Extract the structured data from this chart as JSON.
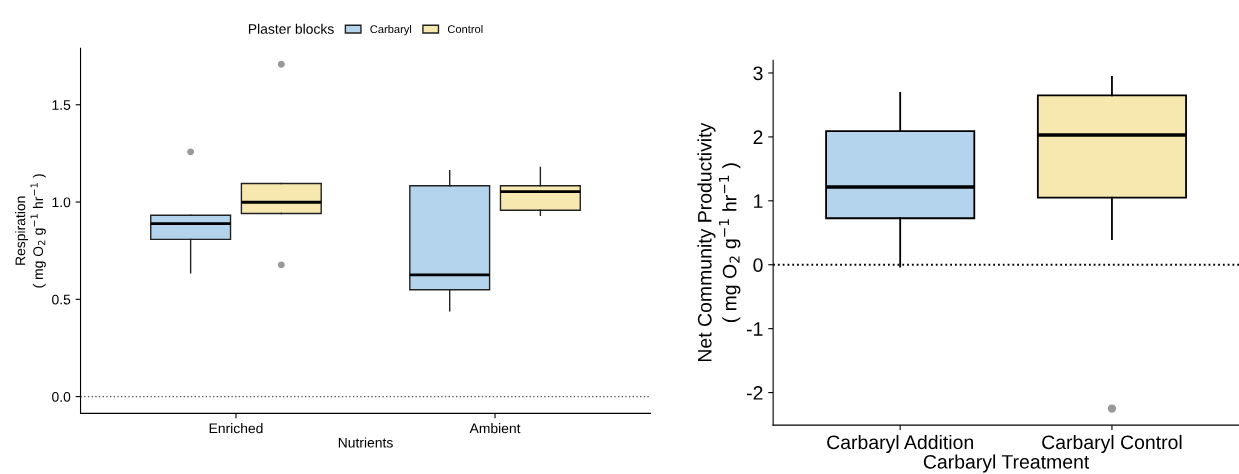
{
  "chart_data": [
    {
      "type": "box",
      "xlabel": "Nutrients",
      "ylabel": "Respiration\n( mg O$_{2}$ g$^{−1}$ hr$^{−1}$ )",
      "legend_title": "Plaster blocks",
      "legend": "top",
      "categories": [
        "Enriched",
        "Ambient"
      ],
      "ylim": [
        -0.086,
        1.79
      ],
      "yticks": [
        {
          "value": 0,
          "label": "0.0"
        },
        0.5,
        {
          "value": 1,
          "label": "1.0"
        },
        1.5
      ],
      "grid": false,
      "series": [
        {
          "name": "Carbaryl",
          "color": "#b3d4ec",
          "boxes": [
            {
              "low": 0.636,
              "q1": 0.808,
              "median": 0.889,
              "q3": 0.932,
              "high": 0.932,
              "outliers": [
                1.258
              ]
            },
            {
              "low": 0.441,
              "q1": 0.549,
              "median": 0.626,
              "q3": 1.084,
              "high": 1.161
            }
          ]
        },
        {
          "name": "Control",
          "color": "#f7e8b0",
          "boxes": [
            {
              "low": 0.941,
              "q1": 0.941,
              "median": 0.999,
              "q3": 1.095,
              "high": 1.095,
              "outliers": [
                1.708,
                0.677
              ]
            },
            {
              "low": 0.932,
              "q1": 0.958,
              "median": 1.054,
              "q3": 1.084,
              "high": 1.178
            }
          ]
        }
      ],
      "ref_lines": [
        {
          "axis": "y",
          "value": 0,
          "line_style": "dotted"
        }
      ]
    },
    {
      "type": "box",
      "xlabel": "Carbaryl Treatment",
      "ylabel": "Net Community Productivity\n( mg O$_{2}$ g$^{−1}$ hr$^{−1}$ )",
      "categories": [
        "Carbaryl Addition",
        "Carbaryl Control"
      ],
      "ylim": [
        -2.51,
        3.2
      ],
      "yticks": [
        {
          "value": -2,
          "label": "-2"
        },
        {
          "value": -1,
          "label": "-1"
        },
        0,
        1,
        2,
        3
      ],
      "grid": false,
      "colors": [
        "#b3d4ec",
        "#f7e8b0"
      ],
      "boxes": [
        {
          "low": -0.03,
          "q1": 0.727,
          "median": 1.215,
          "q3": 2.09,
          "high": 2.69
        },
        {
          "low": 0.4,
          "q1": 1.05,
          "median": 2.03,
          "q3": 2.65,
          "high": 2.94,
          "outliers": [
            -2.25
          ]
        }
      ],
      "ref_lines": [
        {
          "axis": "y",
          "value": 0,
          "line_style": "dotted"
        }
      ]
    }
  ]
}
